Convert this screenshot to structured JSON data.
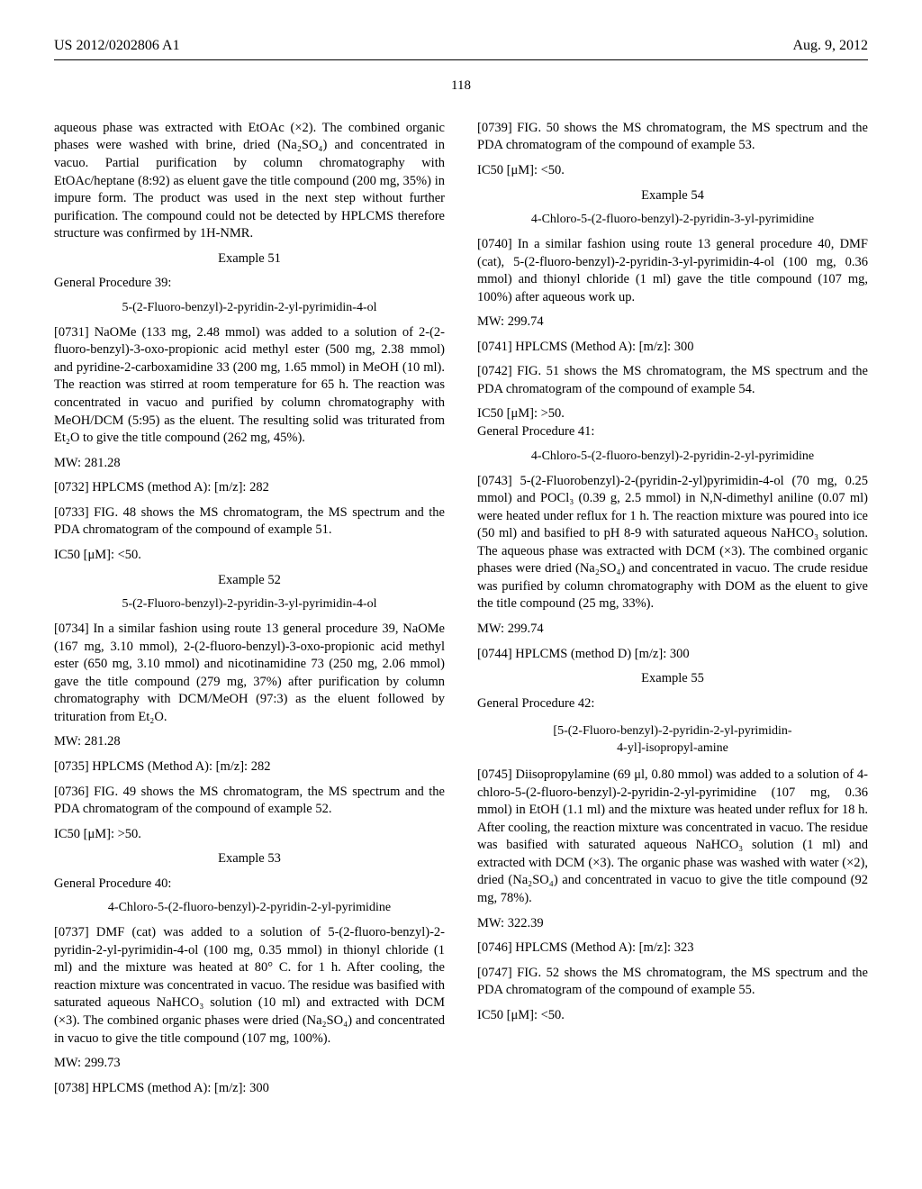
{
  "header": {
    "left": "US 2012/0202806 A1",
    "right": "Aug. 9, 2012"
  },
  "page_number": "118",
  "col1": {
    "p_cont": "aqueous phase was extracted with EtOAc (×2). The combined organic phases were washed with brine, dried (Na₂SO₄) and concentrated in vacuo. Partial purification by column chromatography with EtOAc/heptane (8:92) as eluent gave the title compound (200 mg, 35%) in impure form. The product was used in the next step without further purification. The compound could not be detected by HPLCMS therefore structure was confirmed by 1H-NMR.",
    "ex51": "Example 51",
    "gp39": "General Procedure 39:",
    "ex51_title": "5-(2-Fluoro-benzyl)-2-pyridin-2-yl-pyrimidin-4-ol",
    "p0731": "[0731]   NaOMe (133 mg, 2.48 mmol) was added to a solution of 2-(2-fluoro-benzyl)-3-oxo-propionic acid methyl ester (500 mg, 2.38 mmol) and pyridine-2-carboxamidine 33 (200 mg, 1.65 mmol) in MeOH (10 ml). The reaction was stirred at room temperature for 65 h. The reaction was concentrated in vacuo and purified by column chromatography with MeOH/DCM (5:95) as the eluent. The resulting solid was triturated from Et₂O to give the title compound (262 mg, 45%).",
    "mw51": "MW: 281.28",
    "p0732": "[0732]   HPLCMS (method A): [m/z]: 282",
    "p0733": "[0733]   FIG. 48 shows the MS chromatogram, the MS spectrum and the PDA chromatogram of the compound of example 51.",
    "ic51": "IC50 [μM]: <50.",
    "ex52": "Example 52",
    "ex52_title": "5-(2-Fluoro-benzyl)-2-pyridin-3-yl-pyrimidin-4-ol",
    "p0734": "[0734]   In a similar fashion using route 13 general procedure 39, NaOMe (167 mg, 3.10 mmol), 2-(2-fluoro-benzyl)-3-oxo-propionic acid methyl ester (650 mg, 3.10 mmol) and nicotinamidine 73 (250 mg, 2.06 mmol) gave the title compound (279 mg, 37%) after purification by column chromatography with DCM/MeOH (97:3) as the eluent followed by trituration from Et₂O.",
    "mw52": "MW: 281.28",
    "p0735": "[0735]   HPLCMS (Method A): [m/z]: 282",
    "p0736": "[0736]   FIG. 49 shows the MS chromatogram, the MS spectrum and the PDA chromatogram of the compound of example 52.",
    "ic52": "IC50 [μM]: >50.",
    "ex53": "Example 53",
    "gp40": "General Procedure 40:",
    "ex53_title": "4-Chloro-5-(2-fluoro-benzyl)-2-pyridin-2-yl-pyrimidine",
    "p0737": "[0737]   DMF (cat) was added to a solution of 5-(2-fluoro-benzyl)-2-pyridin-2-yl-pyrimidin-4-ol (100 mg, 0.35 mmol) in thionyl chloride (1 ml) and the mixture was heated at 80° C. for 1 h. After cooling, the reaction mixture was concentrated in vacuo. The residue was basified with saturated aqueous NaHCO₃ solution (10 ml) and extracted with DCM (×3). The combined organic phases were dried (Na₂SO₄) and concentrated in vacuo to give the title compound (107 mg, 100%)."
  },
  "col2": {
    "mw53": "MW: 299.73",
    "p0738": "[0738]   HPLCMS (method A): [m/z]: 300",
    "p0739": "[0739]   FIG. 50 shows the MS chromatogram, the MS spectrum and the PDA chromatogram of the compound of example 53.",
    "ic53": "IC50 [μM]: <50.",
    "ex54": "Example 54",
    "ex54_title": "4-Chloro-5-(2-fluoro-benzyl)-2-pyridin-3-yl-pyrimidine",
    "p0740": "[0740]   In a similar fashion using route 13 general procedure 40, DMF (cat), 5-(2-fluoro-benzyl)-2-pyridin-3-yl-pyrimidin-4-ol (100 mg, 0.36 mmol) and thionyl chloride (1 ml) gave the title compound (107 mg, 100%) after aqueous work up.",
    "mw54": "MW: 299.74",
    "p0741": "[0741]   HPLCMS (Method A): [m/z]: 300",
    "p0742": "[0742]   FIG. 51 shows the MS chromatogram, the MS spectrum and the PDA chromatogram of the compound of example 54.",
    "ic54": "IC50 [μM]: >50.",
    "gp41": "General Procedure 41:",
    "ex54b_title": "4-Chloro-5-(2-fluoro-benzyl)-2-pyridin-2-yl-pyrimidine",
    "p0743": "[0743]   5-(2-Fluorobenzyl)-2-(pyridin-2-yl)pyrimidin-4-ol (70 mg, 0.25 mmol) and POCl₃ (0.39 g, 2.5 mmol) in N,N-dimethyl aniline (0.07 ml) were heated under reflux for 1 h. The reaction mixture was poured into ice (50 ml) and basified to pH 8-9 with saturated aqueous NaHCO₃ solution. The aqueous phase was extracted with DCM (×3). The combined organic phases were dried (Na₂SO₄) and concentrated in vacuo. The crude residue was purified by column chromatography with DOM as the eluent to give the title compound (25 mg, 33%).",
    "mw54b": "MW: 299.74",
    "p0744": "[0744]   HPLCMS (method D) [m/z]: 300",
    "ex55": "Example 55",
    "gp42": "General Procedure 42:",
    "ex55_title1": "[5-(2-Fluoro-benzyl)-2-pyridin-2-yl-pyrimidin-",
    "ex55_title2": "4-yl]-isopropyl-amine",
    "p0745": "[0745]   Diisopropylamine (69 μl, 0.80 mmol) was added to a solution of 4-chloro-5-(2-fluoro-benzyl)-2-pyridin-2-yl-pyrimidine (107 mg, 0.36 mmol) in EtOH (1.1 ml) and the mixture was heated under reflux for 18 h. After cooling, the reaction mixture was concentrated in vacuo. The residue was basified with saturated aqueous NaHCO₃ solution (1 ml) and extracted with DCM (×3). The organic phase was washed with water (×2), dried (Na₂SO₄) and concentrated in vacuo to give the title compound (92 mg, 78%).",
    "mw55": "MW: 322.39",
    "p0746": "[0746]   HPLCMS (Method A): [m/z]: 323",
    "p0747": "[0747]   FIG. 52 shows the MS chromatogram, the MS spectrum and the PDA chromatogram of the compound of example 55.",
    "ic55": "IC50 [μM]: <50."
  }
}
